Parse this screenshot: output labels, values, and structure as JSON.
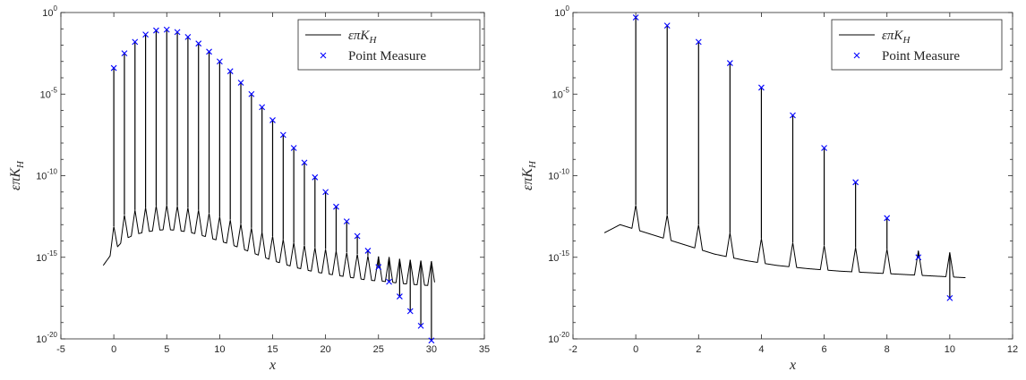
{
  "chart_data": [
    {
      "type": "line",
      "y_scale": "log",
      "xlim": [
        -5,
        35
      ],
      "ylim_exp": [
        -20,
        0
      ],
      "xticks": [
        "-5",
        "0",
        "5",
        "10",
        "15",
        "20",
        "25",
        "30",
        "35"
      ],
      "yticks": [
        {
          "base": "10",
          "exp": "-20"
        },
        {
          "base": "10",
          "exp": "-15"
        },
        {
          "base": "10",
          "exp": "-10"
        },
        {
          "base": "10",
          "exp": "-5"
        },
        {
          "base": "10",
          "exp": "0"
        }
      ],
      "xlabel": "x",
      "ylabel": "επK",
      "ylabel_sub": "H",
      "legend_position": "top-right",
      "series": [
        {
          "name": "επK",
          "name_sub": "H",
          "kind": "line",
          "color": "#000000",
          "x_range": [
            -1,
            30.3
          ],
          "baseline_log10": [
            [
              -1,
              -15.5
            ],
            [
              0,
              -14.6
            ],
            [
              1,
              -13.9
            ],
            [
              2,
              -13.6
            ],
            [
              3,
              -13.45
            ],
            [
              4,
              -13.35
            ],
            [
              5,
              -13.3
            ],
            [
              6,
              -13.35
            ],
            [
              7,
              -13.45
            ],
            [
              8,
              -13.6
            ],
            [
              9,
              -13.8
            ],
            [
              10,
              -14.0
            ],
            [
              11,
              -14.2
            ],
            [
              12,
              -14.45
            ],
            [
              13,
              -14.7
            ],
            [
              14,
              -14.95
            ],
            [
              15,
              -15.2
            ],
            [
              16,
              -15.4
            ],
            [
              17,
              -15.6
            ],
            [
              18,
              -15.75
            ],
            [
              19,
              -15.9
            ],
            [
              20,
              -16.0
            ],
            [
              21,
              -16.1
            ],
            [
              22,
              -16.2
            ],
            [
              23,
              -16.3
            ],
            [
              24,
              -16.4
            ],
            [
              25,
              -16.45
            ],
            [
              26,
              -16.5
            ],
            [
              27,
              -16.6
            ],
            [
              28,
              -16.65
            ],
            [
              29,
              -16.7
            ],
            [
              30.3,
              -16.75
            ]
          ]
        },
        {
          "name": "Point Measure",
          "kind": "marker",
          "marker": "x",
          "color": "#0000ff",
          "x": [
            0,
            1,
            2,
            3,
            4,
            5,
            6,
            7,
            8,
            9,
            10,
            11,
            12,
            13,
            14,
            15,
            16,
            17,
            18,
            19,
            20,
            21,
            22,
            23,
            24,
            25,
            26,
            27,
            28,
            29,
            30
          ],
          "y_log10": [
            -3.4,
            -2.5,
            -1.8,
            -1.35,
            -1.1,
            -1.05,
            -1.2,
            -1.5,
            -1.9,
            -2.4,
            -3.0,
            -3.6,
            -4.3,
            -5.0,
            -5.8,
            -6.6,
            -7.5,
            -8.3,
            -9.2,
            -10.1,
            -11.0,
            -11.9,
            -12.8,
            -13.7,
            -14.6,
            -15.6,
            -16.5,
            -17.4,
            -18.3,
            -19.2,
            -20.1
          ]
        }
      ]
    },
    {
      "type": "line",
      "y_scale": "log",
      "xlim": [
        -2,
        12
      ],
      "ylim_exp": [
        -20,
        0
      ],
      "xticks": [
        "-2",
        "0",
        "2",
        "4",
        "6",
        "8",
        "10",
        "12"
      ],
      "yticks": [
        {
          "base": "10",
          "exp": "-20"
        },
        {
          "base": "10",
          "exp": "-15"
        },
        {
          "base": "10",
          "exp": "-10"
        },
        {
          "base": "10",
          "exp": "-5"
        },
        {
          "base": "10",
          "exp": "0"
        }
      ],
      "xlabel": "x",
      "ylabel": "επK",
      "ylabel_sub": "H",
      "legend_position": "top-right",
      "series": [
        {
          "name": "επK",
          "name_sub": "H",
          "kind": "line",
          "color": "#000000",
          "x_range": [
            -1,
            10.5
          ],
          "baseline_log10": [
            [
              -1,
              -13.5
            ],
            [
              -0.5,
              -13.0
            ],
            [
              0.5,
              -13.6
            ],
            [
              1.5,
              -14.2
            ],
            [
              2.5,
              -14.8
            ],
            [
              3.5,
              -15.2
            ],
            [
              4.5,
              -15.5
            ],
            [
              5.5,
              -15.7
            ],
            [
              6.5,
              -15.85
            ],
            [
              7.5,
              -15.95
            ],
            [
              8.5,
              -16.05
            ],
            [
              9.5,
              -16.15
            ],
            [
              10.5,
              -16.25
            ]
          ]
        },
        {
          "name": "Point Measure",
          "kind": "marker",
          "marker": "x",
          "color": "#0000ff",
          "x": [
            0,
            1,
            2,
            3,
            4,
            5,
            6,
            7,
            8,
            9,
            10
          ],
          "y_log10": [
            -0.3,
            -0.8,
            -1.8,
            -3.1,
            -4.6,
            -6.3,
            -8.3,
            -10.4,
            -12.6,
            -15.0,
            -17.5
          ]
        }
      ]
    }
  ]
}
